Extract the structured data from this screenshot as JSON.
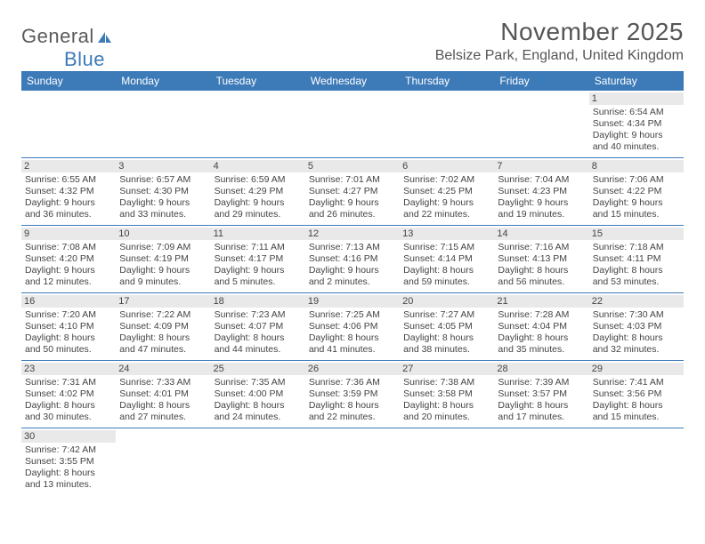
{
  "logo": {
    "text1": "General",
    "text2": "Blue"
  },
  "header": {
    "month_title": "November 2025",
    "location": "Belsize Park, England, United Kingdom"
  },
  "colors": {
    "header_bg": "#3d7ab8",
    "header_text": "#ffffff",
    "daynum_bg": "#e9e9e9",
    "border": "#3d7ab8",
    "body_text": "#444444",
    "page_bg": "#ffffff"
  },
  "typography": {
    "month_title_size": 28,
    "location_size": 16,
    "dayhead_size": 12,
    "daynum_size": 11,
    "suninfo_size": 10.5,
    "font_family": "Arial"
  },
  "calendar": {
    "day_names": [
      "Sunday",
      "Monday",
      "Tuesday",
      "Wednesday",
      "Thursday",
      "Friday",
      "Saturday"
    ],
    "leading_blanks": 6,
    "days": [
      {
        "n": "1",
        "sunrise": "6:54 AM",
        "sunset": "4:34 PM",
        "daylight": "9 hours and 40 minutes."
      },
      {
        "n": "2",
        "sunrise": "6:55 AM",
        "sunset": "4:32 PM",
        "daylight": "9 hours and 36 minutes."
      },
      {
        "n": "3",
        "sunrise": "6:57 AM",
        "sunset": "4:30 PM",
        "daylight": "9 hours and 33 minutes."
      },
      {
        "n": "4",
        "sunrise": "6:59 AM",
        "sunset": "4:29 PM",
        "daylight": "9 hours and 29 minutes."
      },
      {
        "n": "5",
        "sunrise": "7:01 AM",
        "sunset": "4:27 PM",
        "daylight": "9 hours and 26 minutes."
      },
      {
        "n": "6",
        "sunrise": "7:02 AM",
        "sunset": "4:25 PM",
        "daylight": "9 hours and 22 minutes."
      },
      {
        "n": "7",
        "sunrise": "7:04 AM",
        "sunset": "4:23 PM",
        "daylight": "9 hours and 19 minutes."
      },
      {
        "n": "8",
        "sunrise": "7:06 AM",
        "sunset": "4:22 PM",
        "daylight": "9 hours and 15 minutes."
      },
      {
        "n": "9",
        "sunrise": "7:08 AM",
        "sunset": "4:20 PM",
        "daylight": "9 hours and 12 minutes."
      },
      {
        "n": "10",
        "sunrise": "7:09 AM",
        "sunset": "4:19 PM",
        "daylight": "9 hours and 9 minutes."
      },
      {
        "n": "11",
        "sunrise": "7:11 AM",
        "sunset": "4:17 PM",
        "daylight": "9 hours and 5 minutes."
      },
      {
        "n": "12",
        "sunrise": "7:13 AM",
        "sunset": "4:16 PM",
        "daylight": "9 hours and 2 minutes."
      },
      {
        "n": "13",
        "sunrise": "7:15 AM",
        "sunset": "4:14 PM",
        "daylight": "8 hours and 59 minutes."
      },
      {
        "n": "14",
        "sunrise": "7:16 AM",
        "sunset": "4:13 PM",
        "daylight": "8 hours and 56 minutes."
      },
      {
        "n": "15",
        "sunrise": "7:18 AM",
        "sunset": "4:11 PM",
        "daylight": "8 hours and 53 minutes."
      },
      {
        "n": "16",
        "sunrise": "7:20 AM",
        "sunset": "4:10 PM",
        "daylight": "8 hours and 50 minutes."
      },
      {
        "n": "17",
        "sunrise": "7:22 AM",
        "sunset": "4:09 PM",
        "daylight": "8 hours and 47 minutes."
      },
      {
        "n": "18",
        "sunrise": "7:23 AM",
        "sunset": "4:07 PM",
        "daylight": "8 hours and 44 minutes."
      },
      {
        "n": "19",
        "sunrise": "7:25 AM",
        "sunset": "4:06 PM",
        "daylight": "8 hours and 41 minutes."
      },
      {
        "n": "20",
        "sunrise": "7:27 AM",
        "sunset": "4:05 PM",
        "daylight": "8 hours and 38 minutes."
      },
      {
        "n": "21",
        "sunrise": "7:28 AM",
        "sunset": "4:04 PM",
        "daylight": "8 hours and 35 minutes."
      },
      {
        "n": "22",
        "sunrise": "7:30 AM",
        "sunset": "4:03 PM",
        "daylight": "8 hours and 32 minutes."
      },
      {
        "n": "23",
        "sunrise": "7:31 AM",
        "sunset": "4:02 PM",
        "daylight": "8 hours and 30 minutes."
      },
      {
        "n": "24",
        "sunrise": "7:33 AM",
        "sunset": "4:01 PM",
        "daylight": "8 hours and 27 minutes."
      },
      {
        "n": "25",
        "sunrise": "7:35 AM",
        "sunset": "4:00 PM",
        "daylight": "8 hours and 24 minutes."
      },
      {
        "n": "26",
        "sunrise": "7:36 AM",
        "sunset": "3:59 PM",
        "daylight": "8 hours and 22 minutes."
      },
      {
        "n": "27",
        "sunrise": "7:38 AM",
        "sunset": "3:58 PM",
        "daylight": "8 hours and 20 minutes."
      },
      {
        "n": "28",
        "sunrise": "7:39 AM",
        "sunset": "3:57 PM",
        "daylight": "8 hours and 17 minutes."
      },
      {
        "n": "29",
        "sunrise": "7:41 AM",
        "sunset": "3:56 PM",
        "daylight": "8 hours and 15 minutes."
      },
      {
        "n": "30",
        "sunrise": "7:42 AM",
        "sunset": "3:55 PM",
        "daylight": "8 hours and 13 minutes."
      }
    ],
    "labels": {
      "sunrise": "Sunrise:",
      "sunset": "Sunset:",
      "daylight": "Daylight:"
    }
  }
}
